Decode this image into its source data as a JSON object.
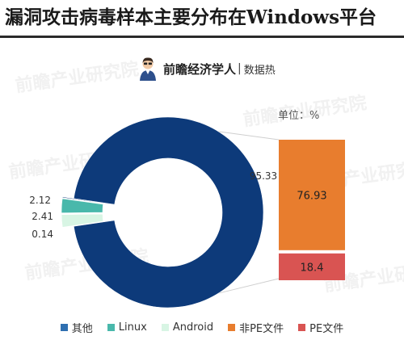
{
  "header": {
    "title": "漏洞攻击病毒样本主要分布在Windows平台"
  },
  "brand": {
    "name": "前瞻经济学人",
    "separator": "|",
    "subtitle": "数据热",
    "avatar_icon": "person-avatar-icon"
  },
  "watermark_text": "前瞻产业研究院",
  "chart_data": {
    "type": "pie",
    "variant": "bar-of-donut",
    "unit_label": "单位：%",
    "slices": [
      {
        "name": "其他",
        "value": 95.33,
        "color": "#0d3a7a"
      },
      {
        "name": "Linux",
        "value": 2.41,
        "color": "#49b8ab"
      },
      {
        "name": "Android",
        "value": 2.12,
        "color": "#d8f5e4"
      },
      {
        "name": "",
        "value": 0.14,
        "color": "#0d3a7a"
      }
    ],
    "breakout": {
      "of_slice": "其他",
      "segments": [
        {
          "name": "非PE文件",
          "value": 76.93,
          "color": "#e87d2e"
        },
        {
          "name": "PE文件",
          "value": 18.4,
          "color": "#d95452"
        }
      ]
    },
    "legend": [
      {
        "label": "其他",
        "color": "#2f6fb0"
      },
      {
        "label": "Linux",
        "color": "#49b8ab"
      },
      {
        "label": "Android",
        "color": "#d8f5e4"
      },
      {
        "label": "非PE文件",
        "color": "#e87d2e"
      },
      {
        "label": "PE文件",
        "color": "#d95452"
      }
    ]
  }
}
